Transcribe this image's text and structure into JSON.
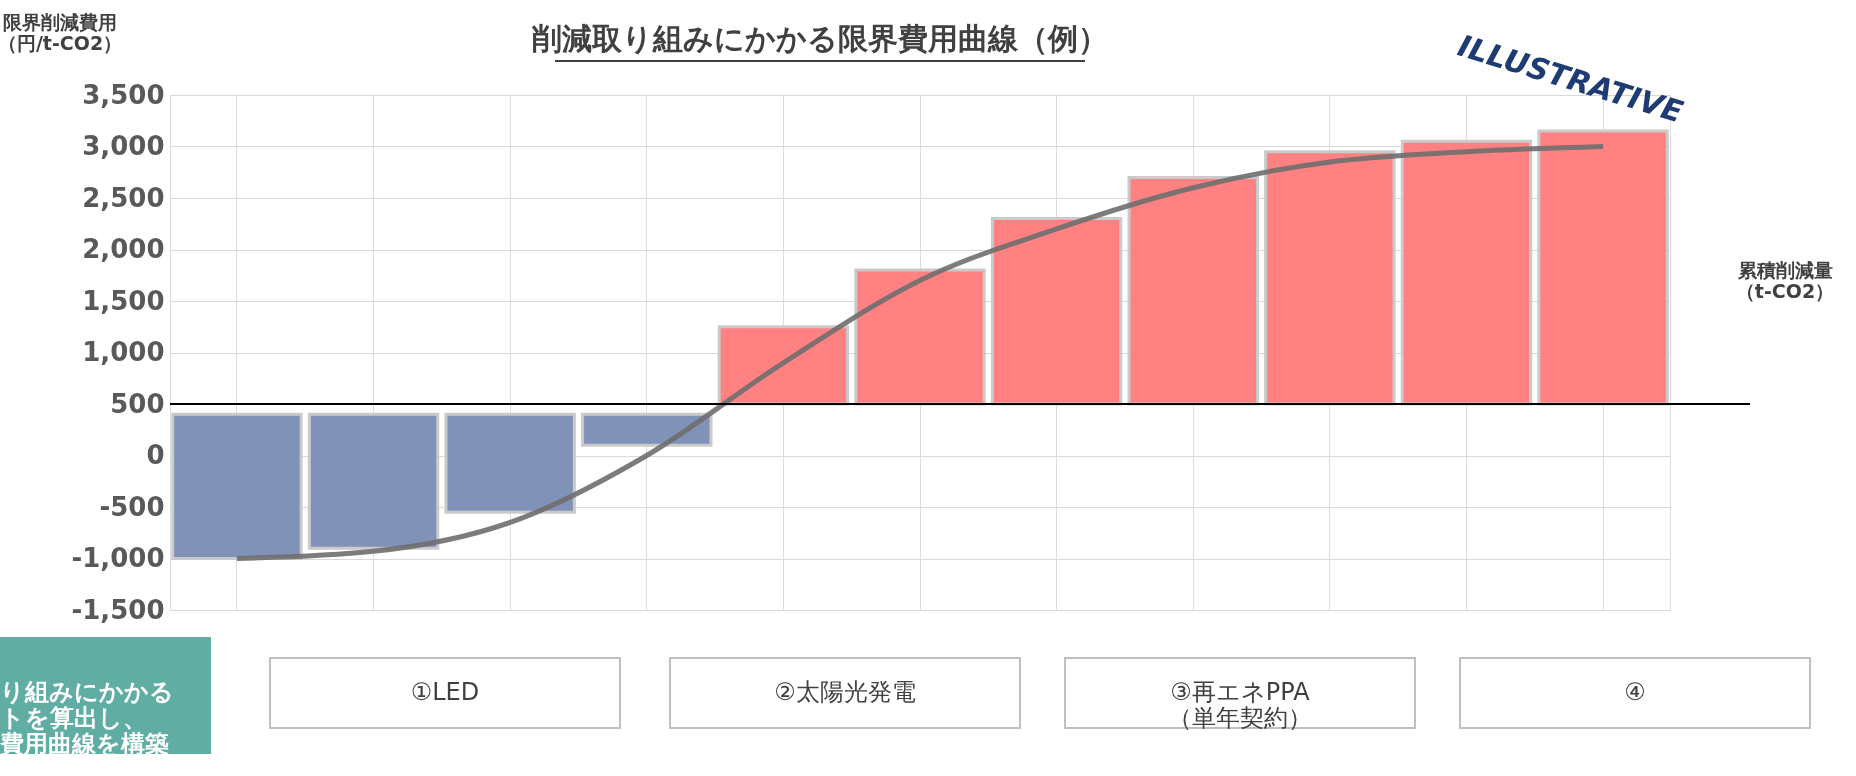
{
  "chart_data": {
    "type": "bar",
    "title": "削減取り組みにかかる限界費用曲線（例）",
    "ylabel": "限界削減費用（円/t-CO2）",
    "xlabel": "累積削減量（t-CO2）",
    "categories": [
      null,
      null,
      null,
      null,
      null,
      null,
      null,
      null,
      null,
      null,
      null
    ],
    "series": [
      {
        "colors": [
          "#7b8db5",
          "#7b8db5",
          "#7b8db5",
          "#7b8db5",
          "#ff7b7b",
          "#ff7b7b",
          "#ff7b7b",
          "#ff7b7b",
          "#ff7b7b",
          "#ff7b7b",
          "#ff7b7b"
        ],
        "base": [
          -1000,
          -900,
          -550,
          100,
          500,
          500,
          500,
          500,
          500,
          500,
          500
        ],
        "values": [
          1400,
          1300,
          950,
          300,
          750,
          1300,
          1800,
          2200,
          2450,
          2550,
          2650
        ]
      },
      {
        "type": "line",
        "color": "#6e6e6e",
        "values": [
          -1000,
          -930,
          -650,
          0,
          900,
          1700,
          2200,
          2600,
          2850,
          2950,
          3000
        ]
      }
    ],
    "ylim": [
      -1500,
      3500
    ],
    "yticks": [
      {
        "value": -1500,
        "label": "-1,500"
      },
      {
        "value": -1000,
        "label": "-1,000"
      },
      {
        "value": -500,
        "label": "-500"
      },
      0,
      500,
      {
        "value": 1000,
        "label": "1,000"
      },
      {
        "value": 1500,
        "label": "1,500"
      },
      {
        "value": 2000,
        "label": "2,000"
      },
      {
        "value": 2500,
        "label": "2,500"
      },
      {
        "value": 3000,
        "label": "3,000"
      },
      {
        "value": 3500,
        "label": "3,500"
      }
    ],
    "ref_lines": [
      {
        "axis": "y",
        "value": 500,
        "label": null,
        "color": "#000000"
      }
    ],
    "grid": true,
    "tick_labels": "y",
    "annotations": [
      "ILLUSTRATIVE",
      "①LED",
      "②太陽光発電",
      "③再エネPPA（単年契約）",
      "④",
      "り組みにかかるトを算出し、費用曲線を構築"
    ]
  }
}
